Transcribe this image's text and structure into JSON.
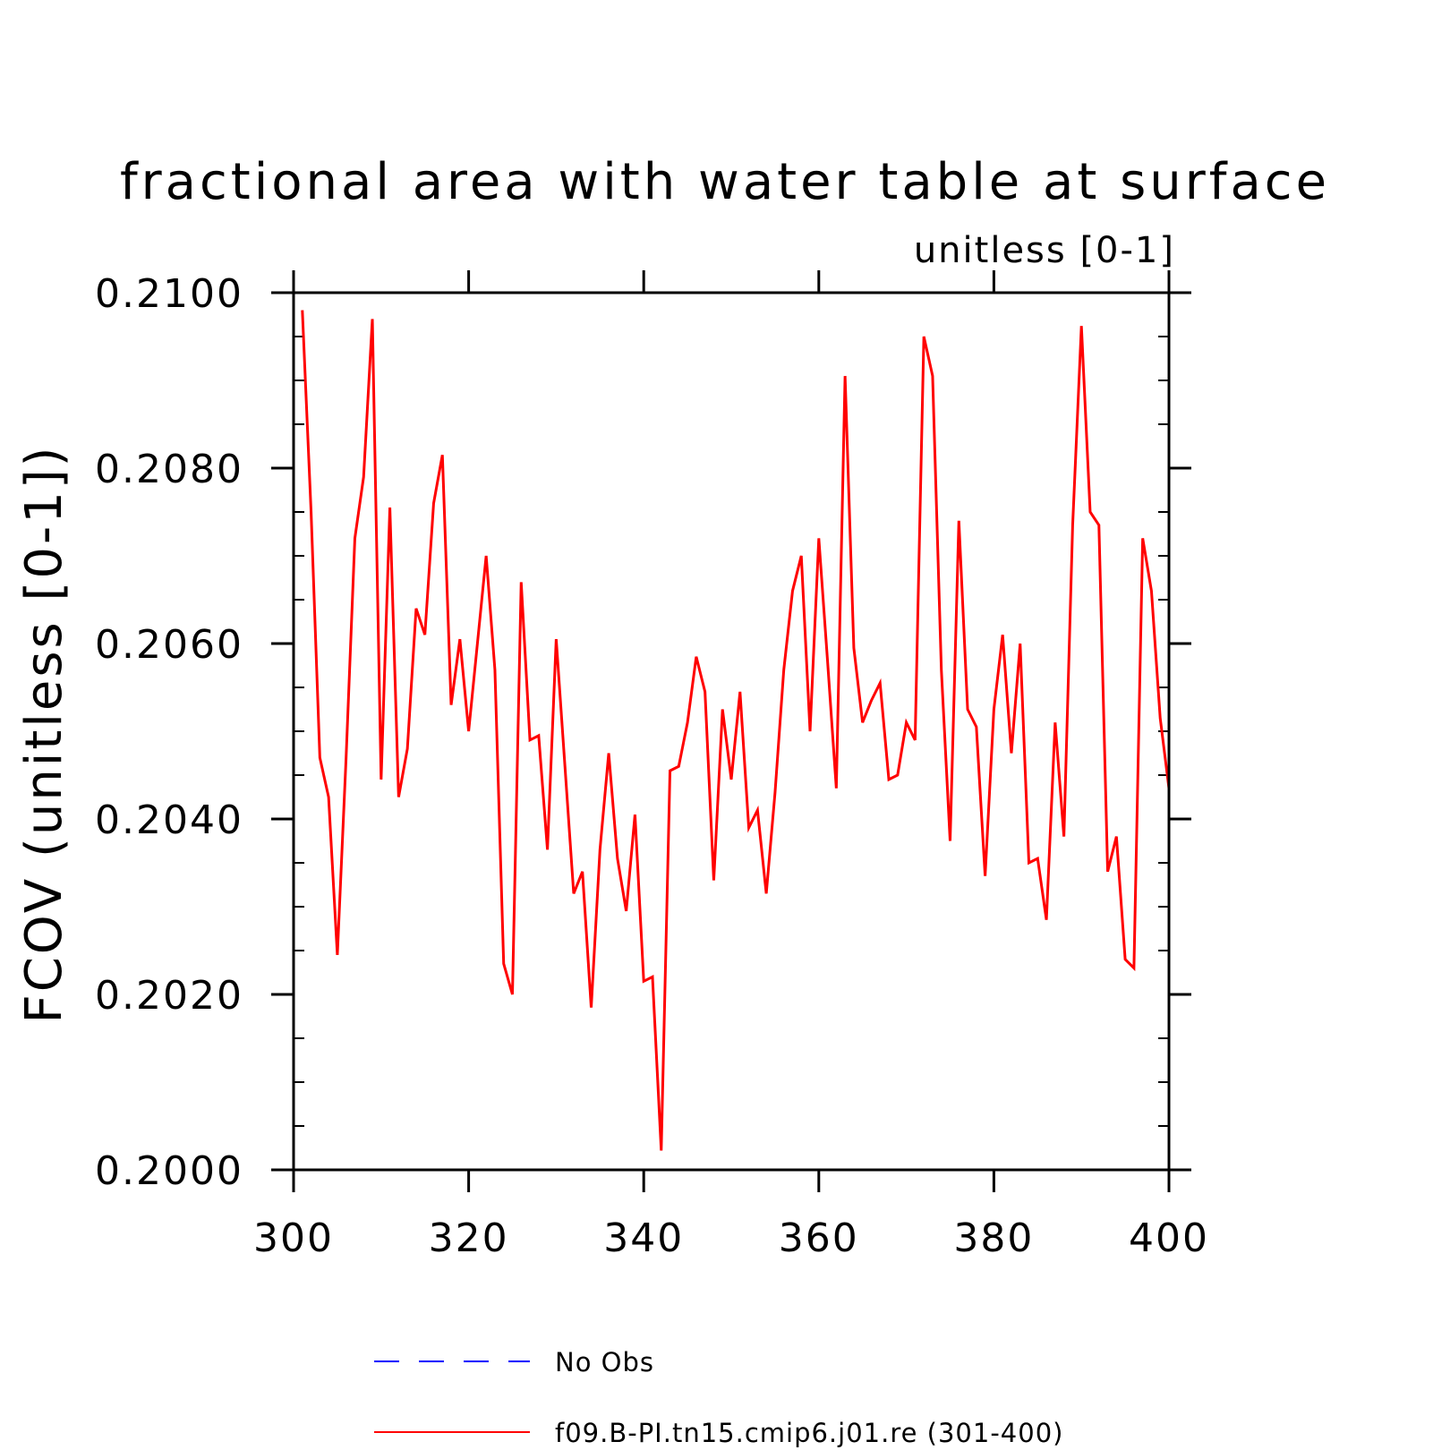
{
  "chart_data": {
    "type": "line",
    "title": "fractional area with water table at surface",
    "subtitle": "unitless [0-1]",
    "ylabel": "FCOV  (unitless [0-1])",
    "xlabel": "",
    "xlim": [
      300,
      400
    ],
    "ylim": [
      0.2,
      0.21
    ],
    "x_ticks": [
      "300",
      "320",
      "340",
      "360",
      "380",
      "400"
    ],
    "y_ticks": [
      "0.2000",
      "0.2020",
      "0.2040",
      "0.2060",
      "0.2080",
      "0.2100"
    ],
    "grid": false,
    "legend_position": "bottom-center",
    "series": [
      {
        "name": "No Obs",
        "color": "#0000ff",
        "dash": "dashed",
        "x": [],
        "values": []
      },
      {
        "name": "f09.B-PI.tn15.cmip6.j01.re (301-400)",
        "color": "#ff0000",
        "dash": "solid",
        "x": [
          301,
          302,
          303,
          304,
          305,
          306,
          307,
          308,
          309,
          310,
          311,
          312,
          313,
          314,
          315,
          316,
          317,
          318,
          319,
          320,
          321,
          322,
          323,
          324,
          325,
          326,
          327,
          328,
          329,
          330,
          331,
          332,
          333,
          334,
          335,
          336,
          337,
          338,
          339,
          340,
          341,
          342,
          343,
          344,
          345,
          346,
          347,
          348,
          349,
          350,
          351,
          352,
          353,
          354,
          355,
          356,
          357,
          358,
          359,
          360,
          361,
          362,
          363,
          364,
          365,
          366,
          367,
          368,
          369,
          370,
          371,
          372,
          373,
          374,
          375,
          376,
          377,
          378,
          379,
          380,
          381,
          382,
          383,
          384,
          385,
          386,
          387,
          388,
          389,
          390,
          391,
          392,
          393,
          394,
          395,
          396,
          397,
          398,
          399,
          400
        ],
        "values": [
          0.2098,
          0.2075,
          0.2047,
          0.20425,
          0.20245,
          0.2047,
          0.2072,
          0.2079,
          0.2097,
          0.20445,
          0.20755,
          0.20425,
          0.2048,
          0.2064,
          0.2061,
          0.2076,
          0.20815,
          0.2053,
          0.20605,
          0.205,
          0.206,
          0.207,
          0.2057,
          0.20235,
          0.202,
          0.2067,
          0.2049,
          0.20495,
          0.20365,
          0.20605,
          0.2046,
          0.20315,
          0.2034,
          0.20185,
          0.20365,
          0.20475,
          0.20355,
          0.20295,
          0.20405,
          0.20215,
          0.2022,
          0.20022,
          0.20455,
          0.2046,
          0.2051,
          0.20585,
          0.20545,
          0.2033,
          0.20525,
          0.20445,
          0.20545,
          0.2039,
          0.2041,
          0.20315,
          0.2043,
          0.2057,
          0.2066,
          0.207,
          0.205,
          0.2072,
          0.2058,
          0.20435,
          0.20905,
          0.20595,
          0.2051,
          0.20535,
          0.20555,
          0.20445,
          0.2045,
          0.2051,
          0.2049,
          0.2095,
          0.20905,
          0.2057,
          0.20375,
          0.2074,
          0.20525,
          0.20505,
          0.20335,
          0.20525,
          0.2061,
          0.20475,
          0.206,
          0.2035,
          0.20355,
          0.20285,
          0.2051,
          0.2038,
          0.20735,
          0.20962,
          0.2075,
          0.20735,
          0.2034,
          0.2038,
          0.2024,
          0.2023,
          0.2072,
          0.2066,
          0.20515,
          0.20435
        ]
      }
    ]
  }
}
